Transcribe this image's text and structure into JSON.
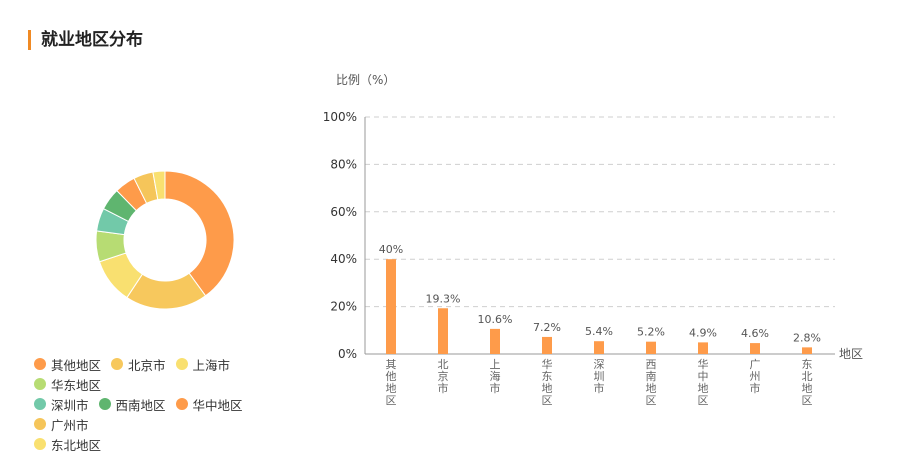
{
  "section": {
    "title": "就业地区分布"
  },
  "chart_data": [
    {
      "type": "pie",
      "variant": "donut",
      "categories": [
        "其他地区",
        "北京市",
        "上海市",
        "华东地区",
        "深圳市",
        "西南地区",
        "华中地区",
        "广州市",
        "东北地区"
      ],
      "values": [
        40,
        19.3,
        10.6,
        7.2,
        5.4,
        5.2,
        4.9,
        4.6,
        2.8
      ],
      "colors": [
        "#fe9b4a",
        "#f7c85d",
        "#f9e070",
        "#b7dc73",
        "#72c9a9",
        "#5fb56f",
        "#fe9b4a",
        "#f5c55a",
        "#f9e070"
      ],
      "legend": "bottom"
    },
    {
      "type": "bar",
      "categories": [
        "其他地区",
        "北京市",
        "上海市",
        "华东地区",
        "深圳市",
        "西南地区",
        "华中地区",
        "广州市",
        "东北地区"
      ],
      "values": [
        40,
        19.3,
        10.6,
        7.2,
        5.4,
        5.2,
        4.9,
        4.6,
        2.8
      ],
      "data_labels": [
        "40%",
        "19.3%",
        "10.6%",
        "7.2%",
        "5.4%",
        "5.2%",
        "4.9%",
        "4.6%",
        "2.8%"
      ],
      "ylabel": "比例（%）",
      "xlabel": "地区",
      "ylim": [
        0,
        100
      ],
      "yticks": [
        "0%",
        "20%",
        "40%",
        "60%",
        "80%",
        "100%"
      ],
      "grid": "horizontal-dashed",
      "bar_color": "#fe9b4a"
    }
  ]
}
